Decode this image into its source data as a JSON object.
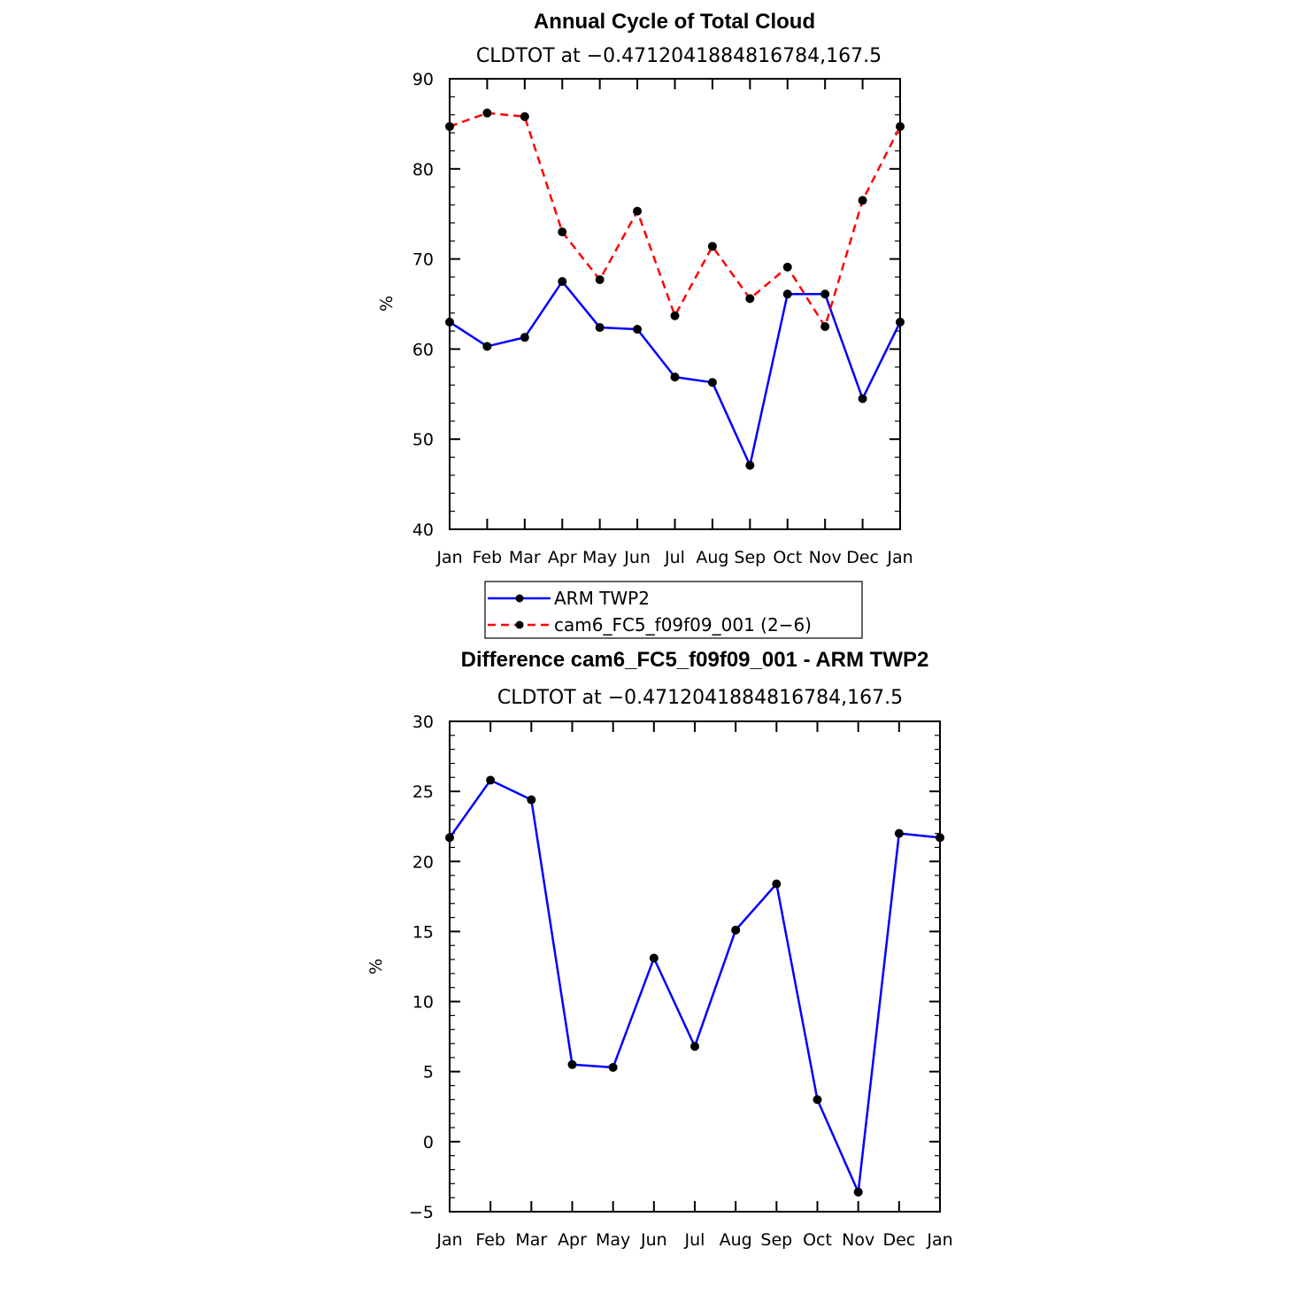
{
  "chart_data": [
    {
      "type": "line",
      "title": "Annual Cycle of Total Cloud",
      "subtitle": "CLDTOT at −0.4712041884816784,167.5",
      "ylabel": "%",
      "ylim": [
        40,
        90
      ],
      "yticks": [
        "40",
        "50",
        "60",
        "70",
        "80",
        "90"
      ],
      "categories": [
        "Jan",
        "Feb",
        "Mar",
        "Apr",
        "May",
        "Jun",
        "Jul",
        "Aug",
        "Sep",
        "Oct",
        "Nov",
        "Dec",
        "Jan"
      ],
      "series": [
        {
          "name": "ARM TWP2",
          "color": "#0000ff",
          "dash": "solid",
          "values": [
            63.0,
            60.3,
            61.3,
            67.5,
            62.4,
            62.2,
            56.9,
            56.3,
            47.1,
            66.1,
            66.1,
            54.5,
            63.0
          ]
        },
        {
          "name": "cam6_FC5_f09f09_001 (2−6)",
          "color": "#ff0000",
          "dash": "dashed",
          "values": [
            84.7,
            86.2,
            85.8,
            73.0,
            67.7,
            75.3,
            63.7,
            71.4,
            65.6,
            69.1,
            62.5,
            76.5,
            84.7
          ]
        }
      ],
      "legend": "below"
    },
    {
      "type": "line",
      "title": "Difference cam6_FC5_f09f09_001 - ARM TWP2",
      "subtitle": "CLDTOT at −0.4712041884816784,167.5",
      "ylabel": "%",
      "ylim": [
        -5,
        30
      ],
      "yticks": [
        "−5",
        "0",
        "5",
        "10",
        "15",
        "20",
        "25",
        "30"
      ],
      "categories": [
        "Jan",
        "Feb",
        "Mar",
        "Apr",
        "May",
        "Jun",
        "Jul",
        "Aug",
        "Sep",
        "Oct",
        "Nov",
        "Dec",
        "Jan"
      ],
      "series": [
        {
          "color": "#0000ff",
          "dash": "solid",
          "values": [
            21.7,
            25.8,
            24.4,
            5.5,
            5.3,
            13.1,
            6.8,
            15.1,
            18.4,
            3.0,
            -3.6,
            22.0,
            21.7
          ]
        }
      ]
    }
  ]
}
